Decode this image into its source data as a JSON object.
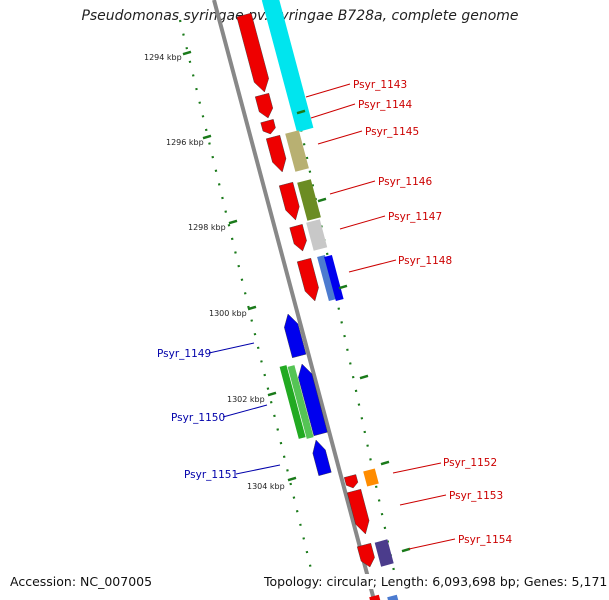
{
  "title": "Pseudomonas syringae pv. syringae B728a, complete genome",
  "footer": {
    "accession": "Accession: NC_007005",
    "stats": "Topology: circular; Length: 6,093,698 bp; Genes: 5,171"
  },
  "colors": {
    "backbone": "#888888",
    "tick": "#1a7a1a",
    "forward_label": "#cc0000",
    "reverse_label": "#0000aa",
    "cyan": "#00e5ee",
    "red": "#ee0000",
    "blue": "#0000ee",
    "khaki": "#b8b072",
    "olive": "#6b8c23",
    "gray": "#c8c8c8",
    "green": "#22aa22",
    "orange": "#ff8c00",
    "slate": "#4b3c8c"
  },
  "ticks": [
    {
      "label": "1294 kbp"
    },
    {
      "label": "1296 kbp"
    },
    {
      "label": "1298 kbp"
    },
    {
      "label": "1300 kbp"
    },
    {
      "label": "1302 kbp"
    },
    {
      "label": "1304 kbp"
    }
  ],
  "genes": [
    {
      "name": "Psyr_1143",
      "strand": "+"
    },
    {
      "name": "Psyr_1144",
      "strand": "+"
    },
    {
      "name": "Psyr_1145",
      "strand": "+"
    },
    {
      "name": "Psyr_1146",
      "strand": "+"
    },
    {
      "name": "Psyr_1147",
      "strand": "+"
    },
    {
      "name": "Psyr_1148",
      "strand": "+"
    },
    {
      "name": "Psyr_1149",
      "strand": "-"
    },
    {
      "name": "Psyr_1150",
      "strand": "-"
    },
    {
      "name": "Psyr_1151",
      "strand": "-"
    },
    {
      "name": "Psyr_1152",
      "strand": "+"
    },
    {
      "name": "Psyr_1153",
      "strand": "+"
    },
    {
      "name": "Psyr_1154",
      "strand": "+"
    }
  ]
}
